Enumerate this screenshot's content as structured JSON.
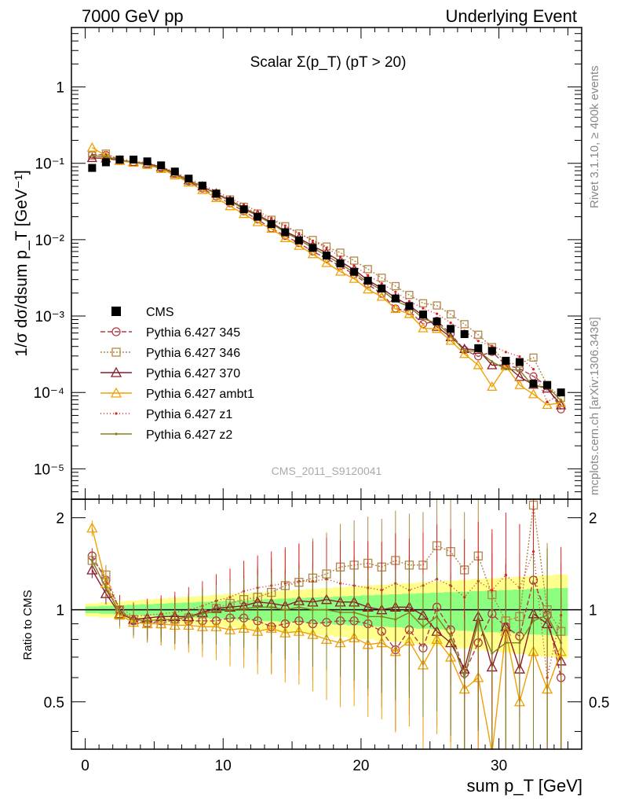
{
  "header": {
    "left": "7000 GeV pp",
    "right": "Underlying Event",
    "side_top": "Rivet 3.1.10, ≥ 400k events",
    "side_bottom": "mcplots.cern.ch [arXiv:1306.3436]",
    "watermark": "CMS_2011_S9120041"
  },
  "chart_data": {
    "type": "line",
    "title": "Scalar Σ(p_T) (pT > 20)",
    "xlabel": "sum p_T [GeV]",
    "ylabel": "1/σ dσ/dsum p_T [GeV⁻¹]",
    "ratio_ylabel": "Ratio to CMS",
    "xlim": [
      -1,
      36
    ],
    "ylim": [
      4e-06,
      6
    ],
    "ratio_ylim": [
      0.35,
      2.3
    ],
    "yscale": "log",
    "ratio_yscale": "log",
    "x_ticks": [
      "0",
      "10",
      "20",
      "30"
    ],
    "x_tick_values": [
      0,
      10,
      20,
      30
    ],
    "y_tick_labels": [
      "10⁻⁵",
      "10⁻⁴",
      "10⁻³",
      "10⁻²",
      "10⁻¹",
      "1"
    ],
    "y_tick_values": [
      1e-05,
      0.0001,
      0.001,
      0.01,
      0.1,
      1
    ],
    "ratio_tick_labels": [
      "0.5",
      "1",
      "2"
    ],
    "ratio_tick_values": [
      0.5,
      1,
      2
    ],
    "legend_position": "lower-left",
    "x": [
      0.5,
      1.5,
      2.5,
      3.5,
      4.5,
      5.5,
      6.5,
      7.5,
      8.5,
      9.5,
      10.5,
      11.5,
      12.5,
      13.5,
      14.5,
      15.5,
      16.5,
      17.5,
      18.5,
      19.5,
      20.5,
      21.5,
      22.5,
      23.5,
      24.5,
      25.5,
      26.5,
      27.5,
      28.5,
      29.5,
      30.5,
      31.5,
      32.5,
      33.5,
      34.5
    ],
    "data": {
      "name": "CMS",
      "color": "#000000",
      "values": [
        0.087,
        0.103,
        0.112,
        0.112,
        0.106,
        0.094,
        0.078,
        0.063,
        0.051,
        0.04,
        0.032,
        0.025,
        0.02,
        0.016,
        0.0125,
        0.0098,
        0.0078,
        0.0062,
        0.0049,
        0.0038,
        0.0029,
        0.0023,
        0.0017,
        0.00135,
        0.00105,
        0.00085,
        0.00068,
        0.00058,
        0.00038,
        0.00035,
        0.00026,
        0.00025,
        0.00013,
        0.000125,
        0.0001
      ]
    },
    "series": [
      {
        "name": "Pythia 6.427 345",
        "color": "#b03a48",
        "dash": "6,3",
        "marker": "circle",
        "ratio": [
          1.5,
          1.25,
          1.0,
          0.92,
          0.9,
          0.92,
          0.93,
          0.92,
          0.92,
          0.92,
          0.94,
          0.94,
          0.92,
          0.88,
          0.9,
          0.92,
          0.9,
          0.91,
          0.92,
          0.92,
          0.9,
          0.85,
          0.74,
          0.86,
          0.75,
          1.02,
          0.86,
          0.62,
          0.78,
          0.97,
          0.88,
          0.82,
          1.25,
          0.96,
          0.6
        ]
      },
      {
        "name": "Pythia 6.427 346",
        "color": "#b08848",
        "dash": "2,2",
        "marker": "square",
        "ratio": [
          1.45,
          1.3,
          1.0,
          0.93,
          0.91,
          0.9,
          0.93,
          0.94,
          0.97,
          1.01,
          1.05,
          1.08,
          1.1,
          1.14,
          1.2,
          1.23,
          1.27,
          1.31,
          1.38,
          1.4,
          1.42,
          1.38,
          1.45,
          1.4,
          1.4,
          1.62,
          1.55,
          1.35,
          1.5,
          1.12,
          0.92,
          0.95,
          2.2,
          1.0,
          0.85
        ]
      },
      {
        "name": "Pythia 6.427 370",
        "color": "#8b1a2b",
        "dash": "",
        "marker": "triangle",
        "ratio": [
          1.35,
          1.13,
          0.97,
          0.93,
          0.94,
          0.95,
          0.95,
          0.95,
          0.98,
          1.01,
          1.02,
          1.03,
          1.06,
          1.05,
          1.03,
          1.07,
          1.06,
          1.08,
          1.06,
          1.06,
          1.02,
          1.0,
          1.02,
          1.02,
          0.96,
          0.85,
          0.78,
          0.64,
          0.95,
          0.65,
          0.88,
          0.64,
          0.97,
          0.9,
          0.68
        ]
      },
      {
        "name": "Pythia 6.427 ambt1",
        "color": "#f0a000",
        "dash": "",
        "marker": "triangle",
        "ratio": [
          1.85,
          1.22,
          0.96,
          0.91,
          0.9,
          0.9,
          0.89,
          0.89,
          0.88,
          0.88,
          0.86,
          0.87,
          0.85,
          0.87,
          0.84,
          0.85,
          0.83,
          0.8,
          0.78,
          0.81,
          0.77,
          0.78,
          0.73,
          0.79,
          0.66,
          0.8,
          0.7,
          0.55,
          0.6,
          0.34,
          0.85,
          0.5,
          0.73,
          0.55,
          0.73
        ]
      },
      {
        "name": "Pythia 6.427 z1",
        "color": "#e02020",
        "dash": "1,3",
        "marker": "dot",
        "ratio": [
          1.45,
          1.18,
          1.02,
          0.95,
          0.96,
          0.97,
          0.98,
          1.0,
          1.03,
          1.07,
          1.1,
          1.15,
          1.18,
          1.2,
          1.22,
          1.24,
          1.24,
          1.26,
          1.22,
          1.2,
          1.18,
          1.16,
          1.22,
          1.16,
          1.2,
          1.26,
          1.2,
          1.1,
          1.24,
          1.16,
          1.3,
          1.18,
          1.55,
          0.6,
          0.96
        ]
      },
      {
        "name": "Pythia 6.427 z2",
        "color": "#808020",
        "dash": "",
        "marker": "dot",
        "ratio": [
          1.45,
          1.18,
          0.98,
          0.93,
          0.92,
          0.93,
          0.93,
          0.95,
          0.97,
          0.99,
          1.0,
          1.01,
          1.02,
          1.02,
          1.0,
          1.02,
          1.0,
          1.0,
          0.98,
          0.98,
          0.95,
          0.95,
          0.93,
          0.98,
          0.88,
          0.95,
          0.82,
          0.6,
          0.92,
          0.72,
          0.78,
          0.78,
          0.92,
          0.96,
          0.78
        ]
      }
    ]
  }
}
